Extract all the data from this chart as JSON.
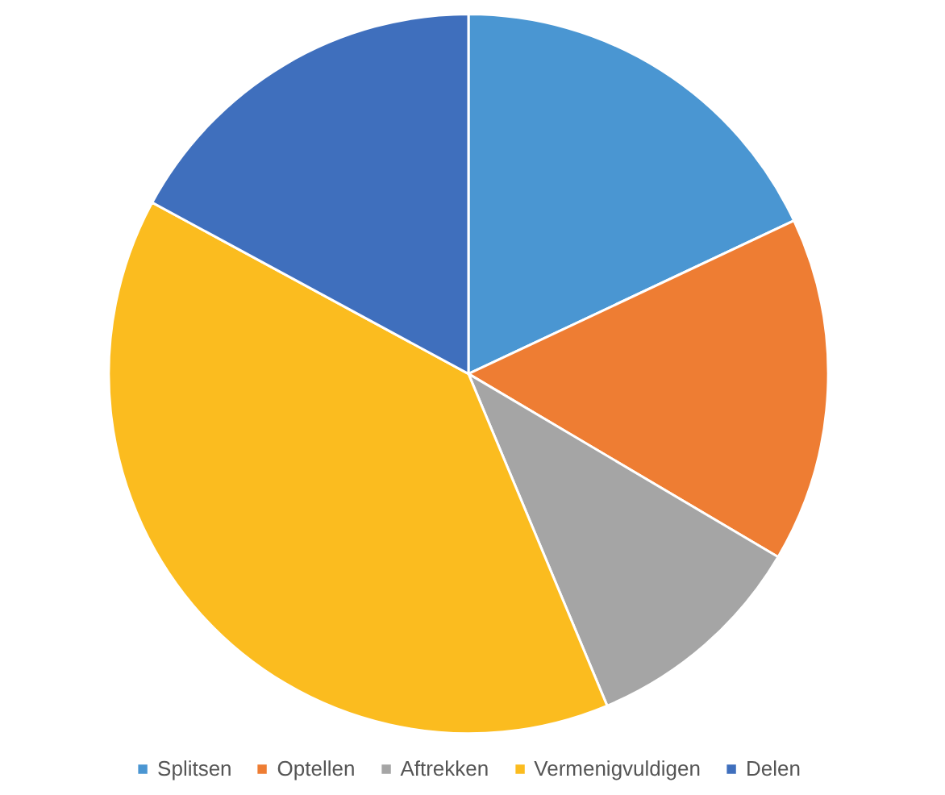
{
  "chart_data": {
    "type": "pie",
    "categories": [
      "Splitsen",
      "Optellen",
      "Aftrekken",
      "Vermenigvuldigen",
      "Delen"
    ],
    "values": [
      18,
      15.5,
      10.2,
      39.2,
      17.1
    ],
    "colors": [
      "#4a96d2",
      "#ee7d33",
      "#a5a5a5",
      "#fbbc1f",
      "#3f6fbd"
    ],
    "legend": "bottom"
  }
}
